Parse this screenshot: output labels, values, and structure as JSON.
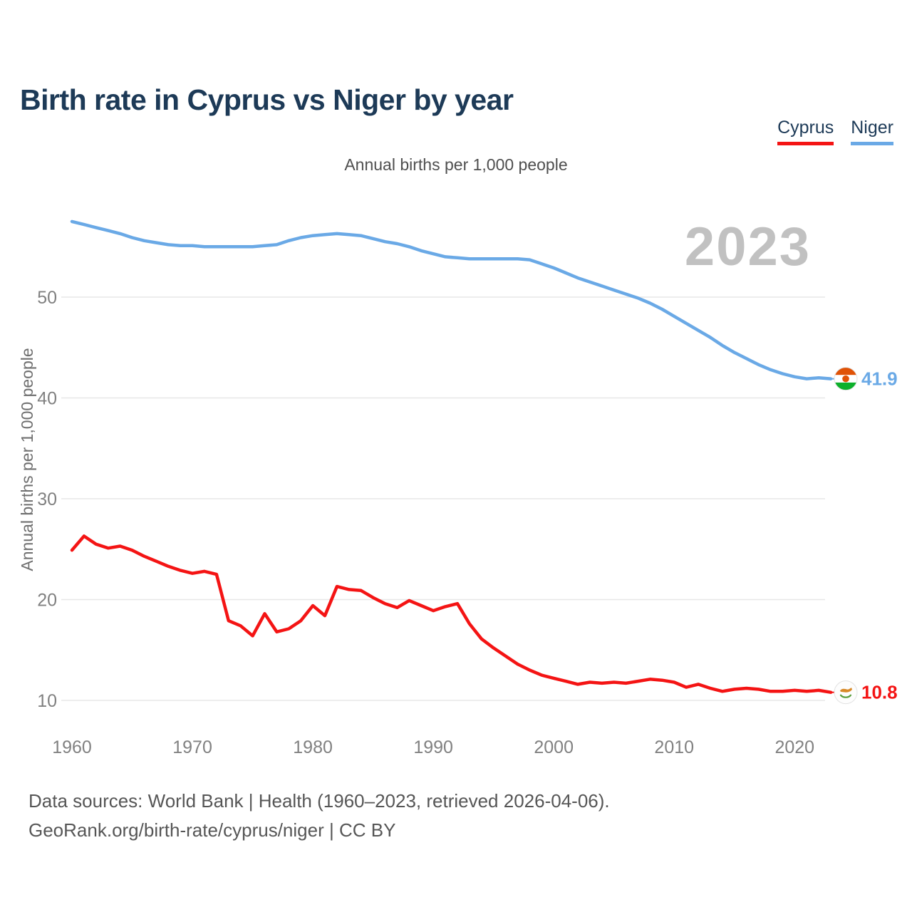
{
  "title": "Birth rate in Cyprus vs Niger by year",
  "subtitle": "Annual births per 1,000 people",
  "watermark": "2023",
  "legend": [
    {
      "label": "Cyprus",
      "color": "#f41414"
    },
    {
      "label": "Niger",
      "color": "#6aa9e6"
    }
  ],
  "footer": {
    "line1": "Data sources: World Bank | Health (1960–2023, retrieved 2026-04-06).",
    "line2": "GeoRank.org/birth-rate/cyprus/niger | CC BY"
  },
  "chart_data": {
    "type": "line",
    "title": "Annual births per 1,000 people",
    "xlabel": "",
    "ylabel": "Annual births per 1,000 people",
    "x_ticks": [
      1960,
      1970,
      1980,
      1990,
      2000,
      2010,
      2020
    ],
    "y_ticks": [
      10,
      20,
      30,
      40,
      50
    ],
    "xlim": [
      1960,
      2023
    ],
    "ylim": [
      8,
      60
    ],
    "grid": true,
    "legend_position": "top-right",
    "annotation_year": "2023",
    "years": [
      1960,
      1961,
      1962,
      1963,
      1964,
      1965,
      1966,
      1967,
      1968,
      1969,
      1970,
      1971,
      1972,
      1973,
      1974,
      1975,
      1976,
      1977,
      1978,
      1979,
      1980,
      1981,
      1982,
      1983,
      1984,
      1985,
      1986,
      1987,
      1988,
      1989,
      1990,
      1991,
      1992,
      1993,
      1994,
      1995,
      1996,
      1997,
      1998,
      1999,
      2000,
      2001,
      2002,
      2003,
      2004,
      2005,
      2006,
      2007,
      2008,
      2009,
      2010,
      2011,
      2012,
      2013,
      2014,
      2015,
      2016,
      2017,
      2018,
      2019,
      2020,
      2021,
      2022,
      2023
    ],
    "series": [
      {
        "name": "Niger",
        "color": "#6aa9e6",
        "end_label": "41.9",
        "flag": "niger",
        "values": [
          57.5,
          57.2,
          56.9,
          56.6,
          56.3,
          55.9,
          55.6,
          55.4,
          55.2,
          55.1,
          55.1,
          55.0,
          55.0,
          55.0,
          55.0,
          55.0,
          55.1,
          55.2,
          55.6,
          55.9,
          56.1,
          56.2,
          56.3,
          56.2,
          56.1,
          55.8,
          55.5,
          55.3,
          55.0,
          54.6,
          54.3,
          54.0,
          53.9,
          53.8,
          53.8,
          53.8,
          53.8,
          53.8,
          53.7,
          53.3,
          52.9,
          52.4,
          51.9,
          51.5,
          51.1,
          50.7,
          50.3,
          49.9,
          49.4,
          48.8,
          48.1,
          47.4,
          46.7,
          46.0,
          45.2,
          44.5,
          43.9,
          43.3,
          42.8,
          42.4,
          42.1,
          41.9,
          42.0,
          41.9
        ]
      },
      {
        "name": "Cyprus",
        "color": "#f41414",
        "end_label": "10.8",
        "flag": "cyprus",
        "values": [
          24.9,
          26.3,
          25.5,
          25.1,
          25.3,
          24.9,
          24.3,
          23.8,
          23.3,
          22.9,
          22.6,
          22.8,
          22.5,
          17.9,
          17.4,
          16.4,
          18.6,
          16.8,
          17.1,
          17.9,
          19.4,
          18.4,
          21.3,
          21.0,
          20.9,
          20.2,
          19.6,
          19.2,
          19.9,
          19.4,
          18.9,
          19.3,
          19.6,
          17.6,
          16.1,
          15.2,
          14.4,
          13.6,
          13.0,
          12.5,
          12.2,
          11.9,
          11.6,
          11.8,
          11.7,
          11.8,
          11.7,
          11.9,
          12.1,
          12.0,
          11.8,
          11.3,
          11.6,
          11.2,
          10.9,
          11.1,
          11.2,
          11.1,
          10.9,
          10.9,
          11.0,
          10.9,
          11.0,
          10.8
        ]
      }
    ]
  }
}
